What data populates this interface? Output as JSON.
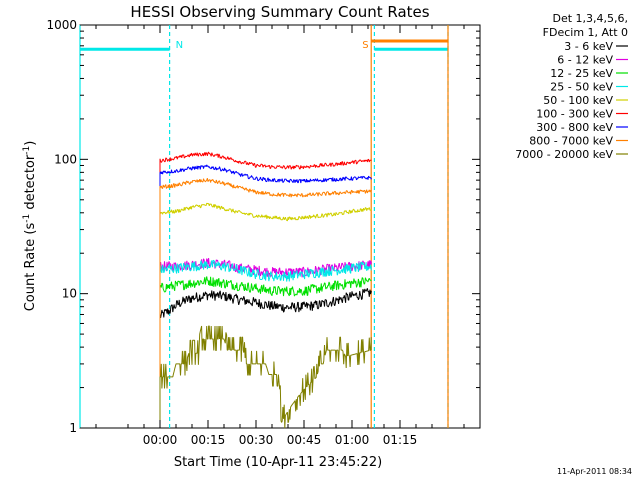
{
  "chart_data": {
    "type": "line",
    "title": "HESSI Observing Summary Count Rates",
    "xlabel": "Start Time (10-Apr-11 23:45:22)",
    "ylabel_main": "Count Rate (s",
    "ylabel_sup1": "-1",
    "ylabel_mid": " detector",
    "ylabel_sup2": "-1",
    "ylabel_end": ")",
    "y_scale": "log",
    "ylim": [
      1,
      1000
    ],
    "xlim_minutes": [
      -25,
      100
    ],
    "x_ticks": [
      {
        "minute": 0,
        "label": "00:00"
      },
      {
        "minute": 15,
        "label": "00:15"
      },
      {
        "minute": 30,
        "label": "00:30"
      },
      {
        "minute": 45,
        "label": "00:45"
      },
      {
        "minute": 60,
        "label": "01:00"
      },
      {
        "minute": 75,
        "label": "01:15"
      }
    ],
    "y_ticks": [
      {
        "value": 1,
        "label": "1"
      },
      {
        "value": 10,
        "label": "10"
      },
      {
        "value": 100,
        "label": "100"
      },
      {
        "value": 1000,
        "label": "1000"
      }
    ],
    "legend_header": [
      "Det 1,3,4,5,6,",
      "FDecim 1, Att 0"
    ],
    "legend_position": "top-right",
    "timestamp": "11-Apr-2011 08:34",
    "data_start_minute": 0,
    "data_end_minute": 66,
    "series": [
      {
        "name": "3 - 6 keV",
        "color": "#000000",
        "x": [
          0,
          3,
          6,
          10,
          15,
          20,
          25,
          30,
          35,
          40,
          45,
          50,
          55,
          60,
          64,
          66
        ],
        "y": [
          6.8,
          7.5,
          8.5,
          9.3,
          9.8,
          9.6,
          9.0,
          8.6,
          8.1,
          7.9,
          8.0,
          8.3,
          8.9,
          9.6,
          10.0,
          10.2
        ]
      },
      {
        "name": "6 - 12 keV",
        "color": "#e000e0",
        "x": [
          0,
          5,
          10,
          15,
          20,
          25,
          30,
          35,
          40,
          45,
          50,
          55,
          60,
          66
        ],
        "y": [
          16.0,
          16.0,
          16.5,
          17.0,
          16.5,
          15.5,
          15.0,
          14.5,
          14.5,
          14.5,
          15.0,
          15.5,
          16.0,
          16.5
        ]
      },
      {
        "name": "12 - 25 keV",
        "color": "#00e000",
        "x": [
          0,
          5,
          10,
          15,
          20,
          25,
          30,
          35,
          40,
          45,
          50,
          55,
          60,
          66
        ],
        "y": [
          11.0,
          11.5,
          12.0,
          12.5,
          12.0,
          11.5,
          11.0,
          10.5,
          10.5,
          10.5,
          11.0,
          11.5,
          12.0,
          12.5
        ]
      },
      {
        "name": "25 - 50 keV",
        "color": "#00e8e8",
        "x": [
          0,
          5,
          10,
          15,
          20,
          25,
          30,
          35,
          40,
          45,
          50,
          55,
          60,
          66
        ],
        "y": [
          15.0,
          15.5,
          16.0,
          16.5,
          16.0,
          15.0,
          14.0,
          13.5,
          13.5,
          14.0,
          14.5,
          15.0,
          15.5,
          16.0
        ]
      },
      {
        "name": "50 - 100 keV",
        "color": "#d0d000",
        "x": [
          0,
          5,
          10,
          15,
          20,
          25,
          30,
          35,
          40,
          45,
          50,
          55,
          60,
          66
        ],
        "y": [
          40,
          41,
          44,
          46,
          43,
          40,
          38,
          37,
          36,
          37,
          38,
          39,
          41,
          43
        ]
      },
      {
        "name": "100 - 300 keV",
        "color": "#ff0000",
        "x": [
          0,
          5,
          10,
          15,
          20,
          25,
          30,
          35,
          40,
          45,
          50,
          55,
          60,
          66
        ],
        "y": [
          98,
          102,
          108,
          110,
          104,
          96,
          90,
          88,
          87,
          88,
          90,
          92,
          95,
          98
        ]
      },
      {
        "name": "300 - 800 keV",
        "color": "#0000ff",
        "x": [
          0,
          5,
          10,
          15,
          20,
          25,
          30,
          35,
          40,
          45,
          50,
          55,
          60,
          66
        ],
        "y": [
          80,
          82,
          86,
          88,
          84,
          77,
          72,
          70,
          69,
          69,
          70,
          71,
          72,
          73
        ]
      },
      {
        "name": "800 - 7000 keV",
        "color": "#ff8000",
        "x": [
          0,
          5,
          10,
          15,
          20,
          25,
          30,
          35,
          40,
          45,
          50,
          55,
          60,
          66
        ],
        "y": [
          62,
          64,
          68,
          70,
          66,
          61,
          57,
          55,
          54,
          54,
          55,
          56,
          57,
          58
        ]
      },
      {
        "name": "7000 - 20000 keV",
        "color": "#808000",
        "x": [
          0,
          4,
          5,
          8,
          9,
          12,
          13,
          20,
          21,
          26,
          27,
          33,
          34,
          37,
          38,
          49,
          50,
          51,
          52,
          57,
          58,
          66
        ],
        "y": [
          2.4,
          2.4,
          3.0,
          3.0,
          3.6,
          3.6,
          4.6,
          4.6,
          3.8,
          3.8,
          3.0,
          3.0,
          2.5,
          2.5,
          1.1,
          2.4,
          3.0,
          3.0,
          3.8,
          3.8,
          3.4,
          3.8
        ]
      }
    ],
    "markers": [
      {
        "type": "night",
        "label": "N",
        "color": "#00e8e8",
        "level": 660,
        "start_minute": -25,
        "end_minute": 3,
        "style": "dashed"
      },
      {
        "type": "night",
        "label": "",
        "color": "#00e8e8",
        "level": 660,
        "start_minute": 67,
        "end_minute": 90,
        "style": "dashed"
      },
      {
        "type": "saa",
        "label": "S",
        "color": "#ff8000",
        "level": 760,
        "start_minute": 66,
        "end_minute": 90,
        "style": "solid"
      }
    ]
  }
}
